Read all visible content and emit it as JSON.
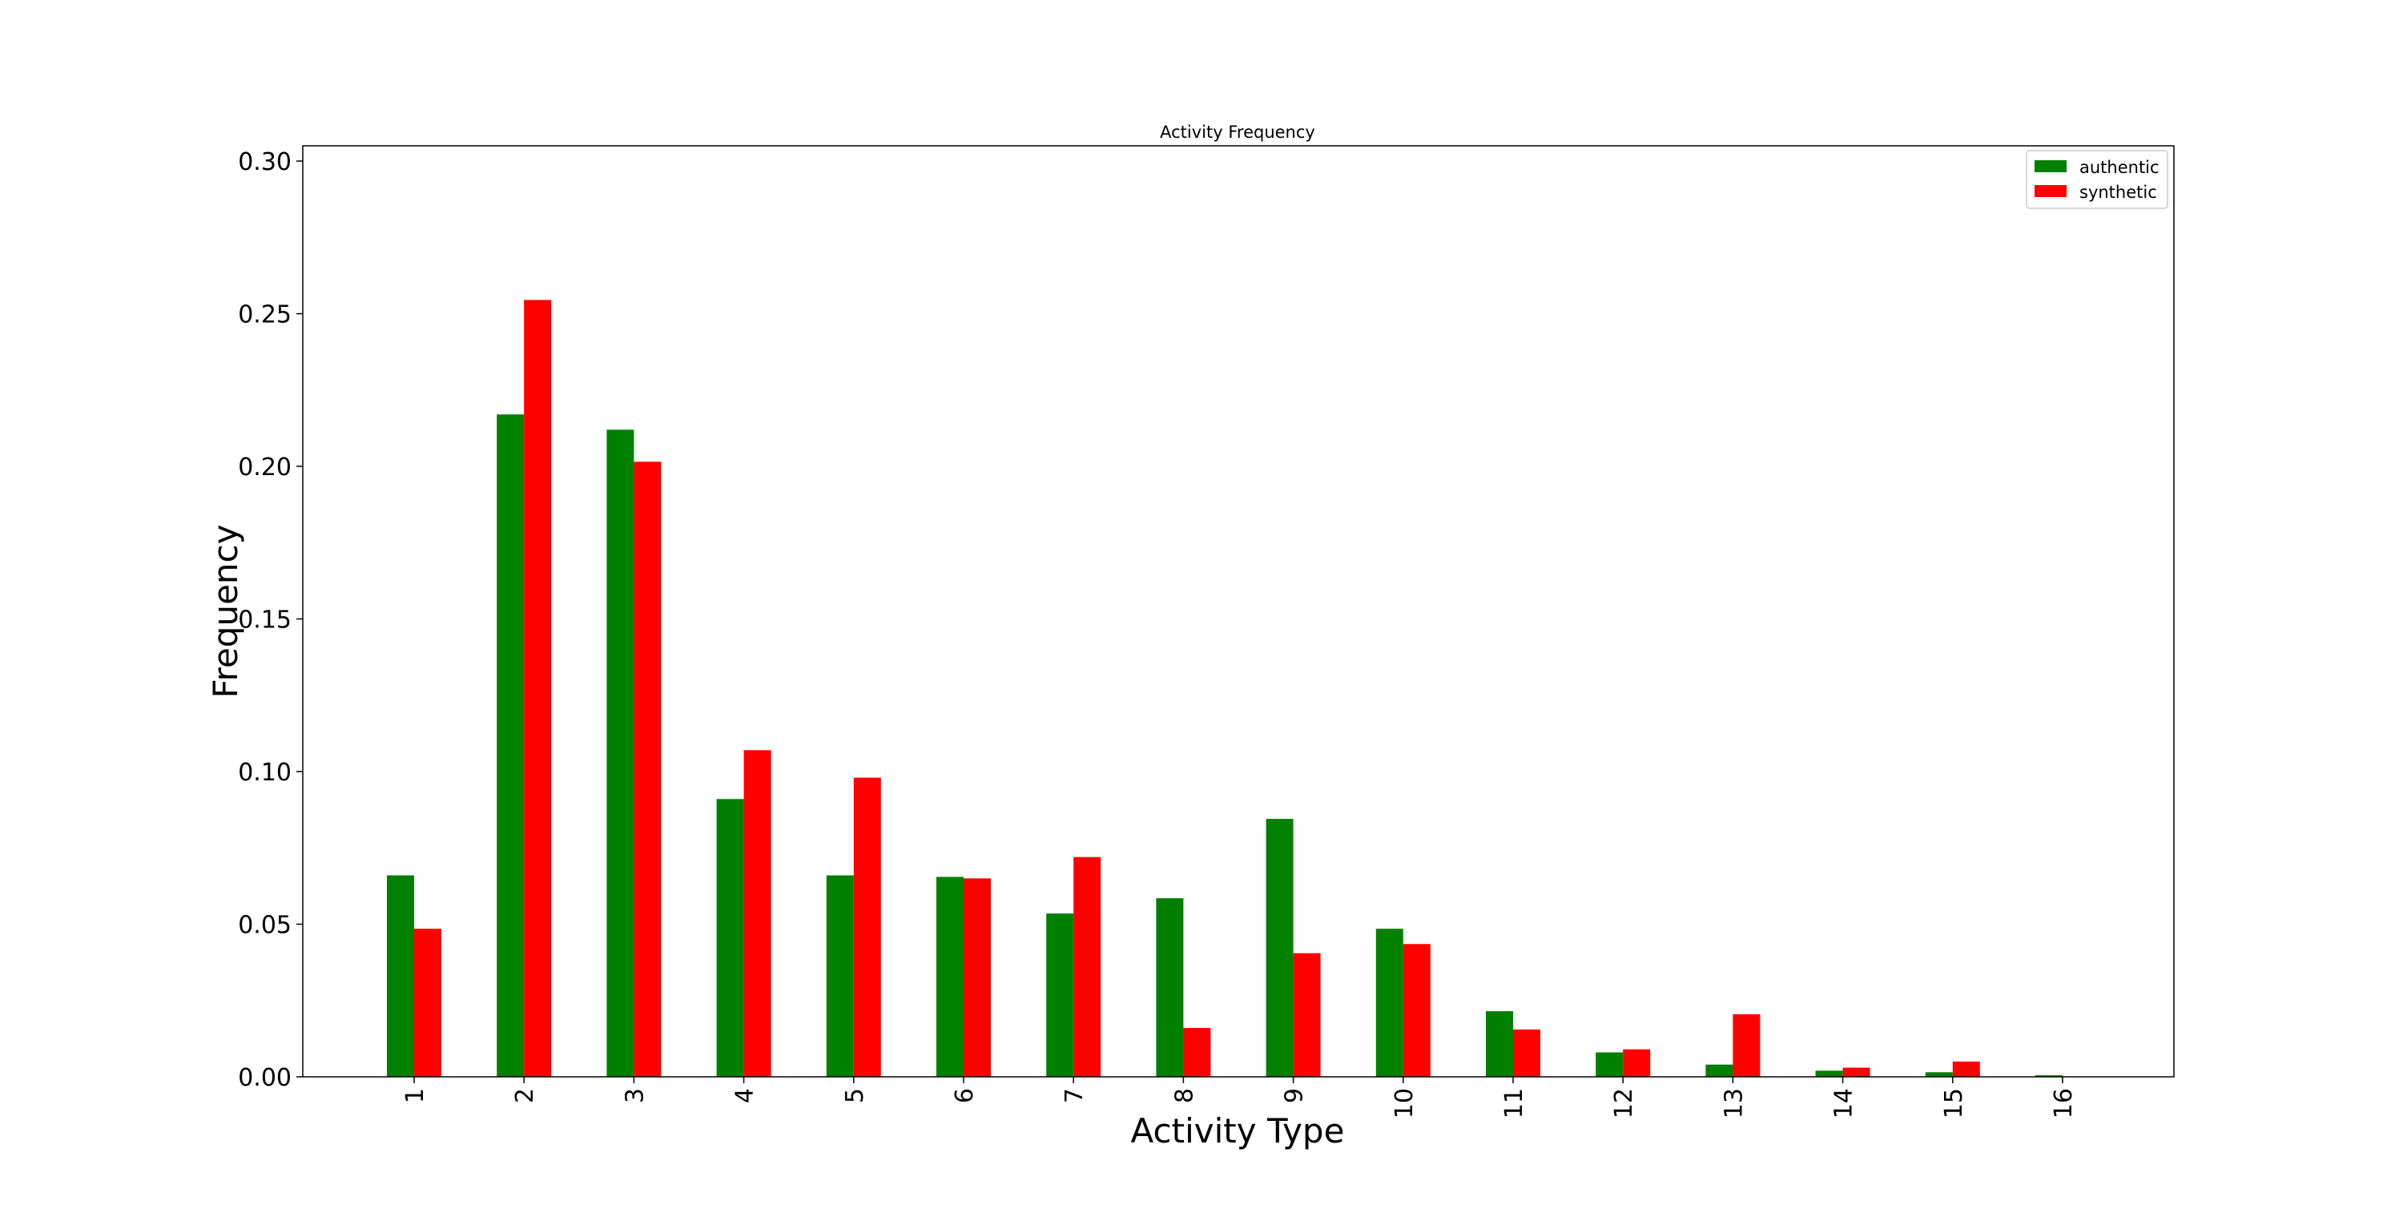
{
  "chart_data": {
    "type": "bar",
    "title": "Activity Frequency",
    "xlabel": "Activity Type",
    "ylabel": "Frequency",
    "categories": [
      "1",
      "2",
      "3",
      "4",
      "5",
      "6",
      "7",
      "8",
      "9",
      "10",
      "11",
      "12",
      "13",
      "14",
      "15",
      "16"
    ],
    "series": [
      {
        "name": "authentic",
        "color": "#008000",
        "values": [
          0.066,
          0.217,
          0.212,
          0.091,
          0.066,
          0.0655,
          0.0535,
          0.0585,
          0.0845,
          0.0485,
          0.0215,
          0.008,
          0.004,
          0.002,
          0.0015,
          0.0005
        ]
      },
      {
        "name": "synthetic",
        "color": "#ff0000",
        "values": [
          0.0485,
          0.2545,
          0.2015,
          0.107,
          0.098,
          0.065,
          0.072,
          0.016,
          0.0405,
          0.0435,
          0.0155,
          0.009,
          0.0205,
          0.003,
          0.005,
          0.0
        ]
      }
    ],
    "ylim": [
      0,
      0.305
    ],
    "yticks": [
      0.0,
      0.05,
      0.1,
      0.15,
      0.2,
      0.25,
      0.3
    ],
    "ytick_labels": [
      "0.00",
      "0.05",
      "0.10",
      "0.15",
      "0.20",
      "0.25",
      "0.30"
    ],
    "legend_position": "top-right",
    "grid": false
  }
}
